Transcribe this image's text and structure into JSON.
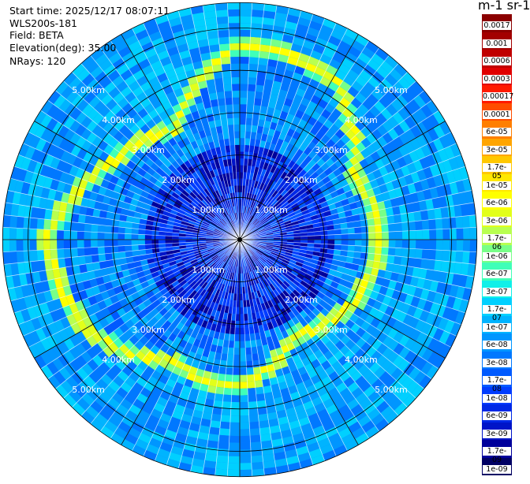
{
  "header": {
    "start_time": "Start time: 2025/12/17 08:07:11",
    "instrument": "WLS200s-181",
    "field": "Field: BETA",
    "elevation": "Elevation(deg): 35.00",
    "nrays": "NRays: 120"
  },
  "chart_data": {
    "type": "heatmap",
    "projection": "polar (PPI scan)",
    "field": "BETA",
    "elevation_deg": 35.0,
    "n_rays": 120,
    "range_rings_km": [
      1.0,
      2.0,
      3.0,
      4.0,
      5.0
    ],
    "max_range_km": 5.6,
    "ring_label": "km",
    "spokes_deg": [
      0,
      30,
      60,
      90,
      120,
      150
    ],
    "grid": true,
    "colorbar": {
      "title": "m-1 sr-1",
      "position": "right",
      "tick_labels": [
        "0.0017",
        "0.001",
        "0.0006",
        "0.0003",
        "0.00017",
        "0.0001",
        "6e-05",
        "3e-05",
        "1.7e-05",
        "1e-05",
        "6e-06",
        "3e-06",
        "1.7e-06",
        "1e-06",
        "6e-07",
        "3e-07",
        "1.7e-07",
        "1e-07",
        "6e-08",
        "3e-08",
        "1.7e-08",
        "1e-08",
        "6e-09",
        "3e-09",
        "1.7e-09",
        "1e-09"
      ],
      "colors": [
        "#8b0000",
        "#a30000",
        "#c00000",
        "#e00000",
        "#ff1a00",
        "#ff4d00",
        "#ff7f00",
        "#ffa500",
        "#ffc800",
        "#ffe800",
        "#ffff00",
        "#e2ff1a",
        "#b8ff50",
        "#78ff88",
        "#40ffb8",
        "#10f0e8",
        "#00d0ff",
        "#00b4ff",
        "#0096ff",
        "#0078ff",
        "#005aff",
        "#003cff",
        "#0028e6",
        "#0014c8",
        "#00009b",
        "#000064"
      ]
    },
    "layer_range_km_by_azimuth": [
      {
        "azimuth_deg": 0,
        "range_km": 4.6
      },
      {
        "azimuth_deg": 30,
        "range_km": 4.4
      },
      {
        "azimuth_deg": 60,
        "range_km": 3.1
      },
      {
        "azimuth_deg": 90,
        "range_km": 3.35
      },
      {
        "azimuth_deg": 120,
        "range_km": 3.05
      },
      {
        "azimuth_deg": 150,
        "range_km": 2.6
      },
      {
        "azimuth_deg": 180,
        "range_km": 3.5
      },
      {
        "azimuth_deg": 210,
        "range_km": 3.3
      },
      {
        "azimuth_deg": 240,
        "range_km": 4.2
      },
      {
        "azimuth_deg": 270,
        "range_km": 4.55
      },
      {
        "azimuth_deg": 300,
        "range_km": 3.55
      },
      {
        "azimuth_deg": 330,
        "range_km": 3.0
      }
    ]
  }
}
